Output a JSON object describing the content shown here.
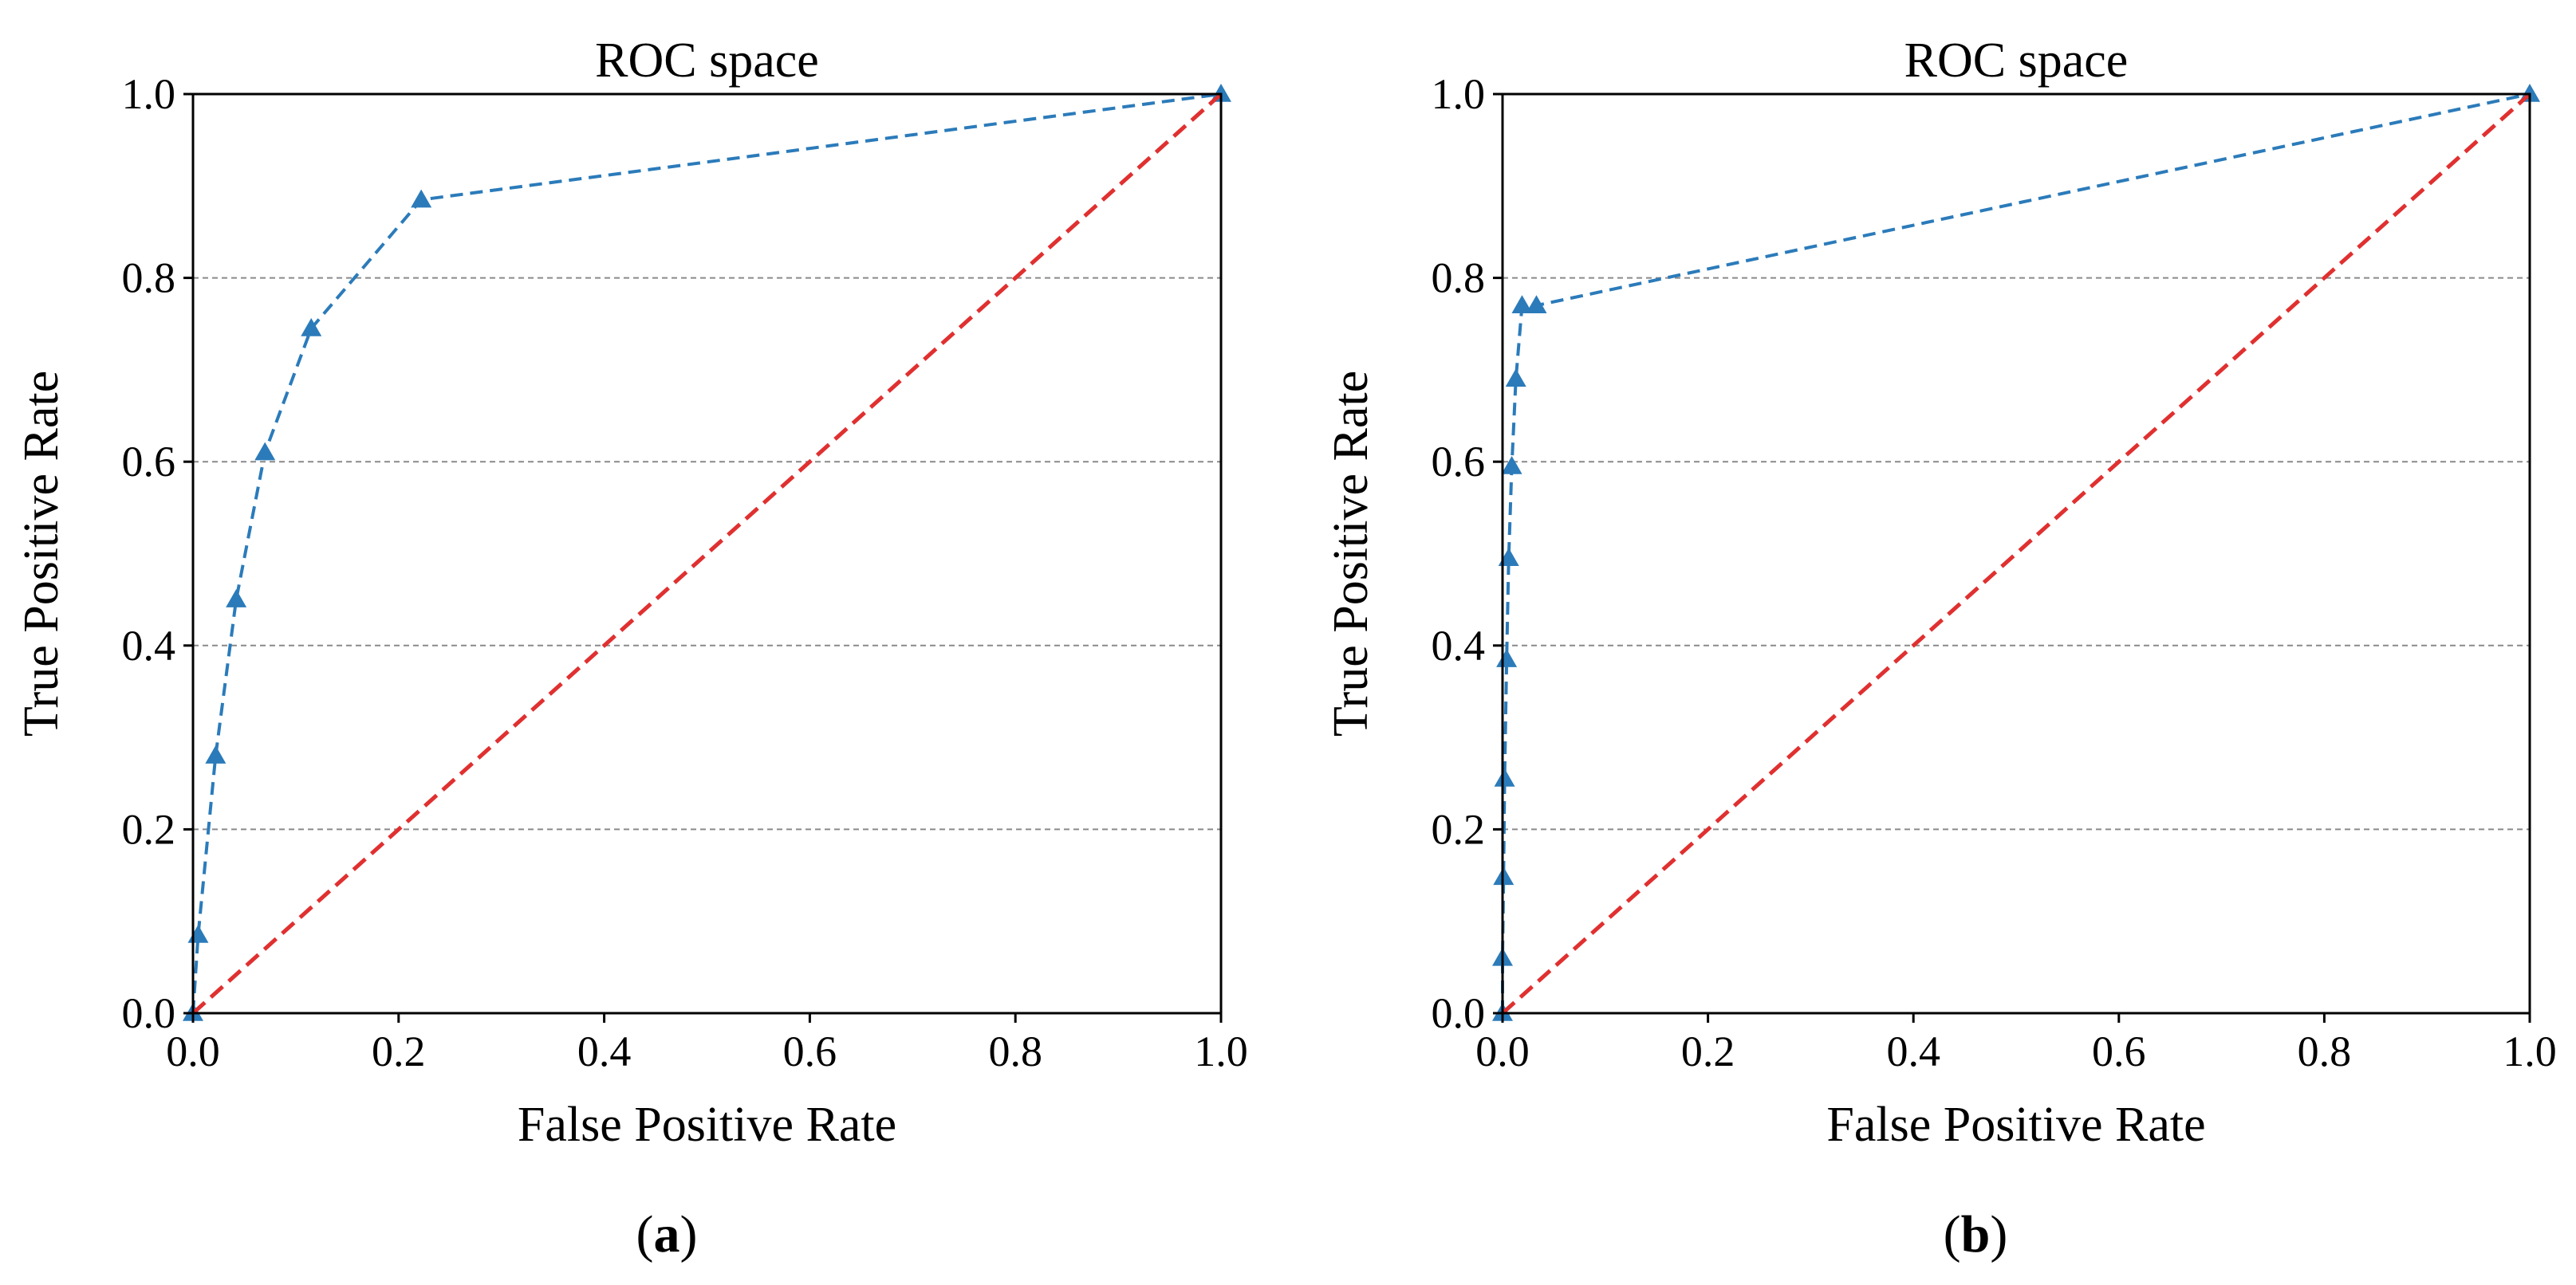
{
  "chart_data": [
    {
      "type": "line",
      "title": "ROC space",
      "xlabel": "False Positive Rate",
      "ylabel": "True Positive Rate",
      "xlim": [
        0,
        1
      ],
      "ylim": [
        0,
        1
      ],
      "xticks": [
        "0.0",
        "0.2",
        "0.4",
        "0.6",
        "0.8",
        "1.0"
      ],
      "yticks": [
        "0.0",
        "0.2",
        "0.4",
        "0.6",
        "0.8",
        "1.0"
      ],
      "grid": "horizontal dashed",
      "caption": {
        "open": "(",
        "letter": "a",
        "close": ")"
      },
      "series": [
        {
          "style": "dashed-triangle",
          "color": "#2b7bba",
          "x": [
            0.0,
            0.005,
            0.022,
            0.042,
            0.07,
            0.115,
            0.222,
            1.0
          ],
          "y": [
            0.0,
            0.085,
            0.28,
            0.45,
            0.61,
            0.745,
            0.885,
            1.0
          ]
        },
        {
          "style": "dashed",
          "color": "#e03030",
          "x": [
            0,
            1
          ],
          "y": [
            0,
            1
          ]
        }
      ]
    },
    {
      "type": "line",
      "title": "ROC space",
      "xlabel": "False Positive Rate",
      "ylabel": "True Positive Rate",
      "xlim": [
        0,
        1
      ],
      "ylim": [
        0,
        1
      ],
      "xticks": [
        "0.0",
        "0.2",
        "0.4",
        "0.6",
        "0.8",
        "1.0"
      ],
      "yticks": [
        "0.0",
        "0.2",
        "0.4",
        "0.6",
        "0.8",
        "1.0"
      ],
      "grid": "horizontal dashed",
      "caption": {
        "open": "(",
        "letter": "b",
        "close": ")"
      },
      "series": [
        {
          "style": "dashed-triangle",
          "color": "#2b7bba",
          "x": [
            0.0,
            0.0,
            0.001,
            0.002,
            0.004,
            0.006,
            0.009,
            0.013,
            0.019,
            0.033,
            1.0
          ],
          "y": [
            0.0,
            0.06,
            0.148,
            0.255,
            0.385,
            0.495,
            0.595,
            0.69,
            0.77,
            0.77,
            1.0
          ]
        },
        {
          "style": "dashed",
          "color": "#e03030",
          "x": [
            0,
            1
          ],
          "y": [
            0,
            1
          ]
        }
      ]
    }
  ]
}
